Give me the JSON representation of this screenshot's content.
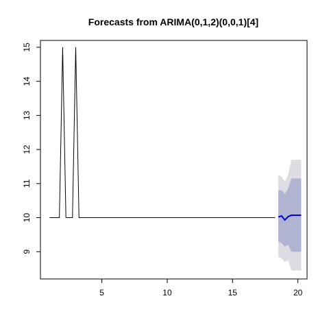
{
  "chart_data": {
    "type": "line",
    "title": "Forecasts from ARIMA(0,1,2)(0,0,1)[4]",
    "xlabel": "",
    "ylabel": "",
    "xlim": [
      0.3,
      20.7
    ],
    "ylim": [
      8.2,
      15.2
    ],
    "x_ticks": [
      5,
      10,
      15,
      20
    ],
    "y_ticks": [
      9,
      10,
      11,
      12,
      13,
      14,
      15
    ],
    "grid": false,
    "colors": {
      "observed": "#000000",
      "forecast": "#0000dd",
      "band80": "#b0b4d0",
      "band95": "#dcdce2"
    },
    "observed": {
      "x": [
        1,
        1.75,
        2,
        2.25,
        2.75,
        3,
        3.25,
        4,
        5,
        6,
        7,
        8,
        9,
        10,
        11,
        12,
        13,
        14,
        15,
        16,
        17,
        18.25
      ],
      "y": [
        10,
        10,
        15,
        10,
        10,
        15,
        10,
        10,
        10,
        10,
        10,
        10,
        10,
        10,
        10,
        10,
        10,
        10,
        10,
        10,
        10,
        10
      ]
    },
    "forecast": {
      "x": [
        18.5,
        18.75,
        19,
        19.25,
        19.5,
        19.75,
        20,
        20.25
      ],
      "mean": [
        10.02,
        10.05,
        9.93,
        10.03,
        10.07,
        10.07,
        10.07,
        10.07
      ],
      "lo80": [
        9.3,
        9.25,
        9.15,
        9.2,
        9.0,
        9.0,
        9.0,
        9.0
      ],
      "hi80": [
        10.8,
        10.8,
        10.7,
        10.85,
        11.15,
        11.15,
        11.15,
        11.15
      ],
      "lo95": [
        8.85,
        8.8,
        8.7,
        8.75,
        8.45,
        8.45,
        8.45,
        8.45
      ],
      "hi95": [
        11.25,
        11.2,
        11.05,
        11.25,
        11.7,
        11.7,
        11.7,
        11.7
      ]
    }
  }
}
